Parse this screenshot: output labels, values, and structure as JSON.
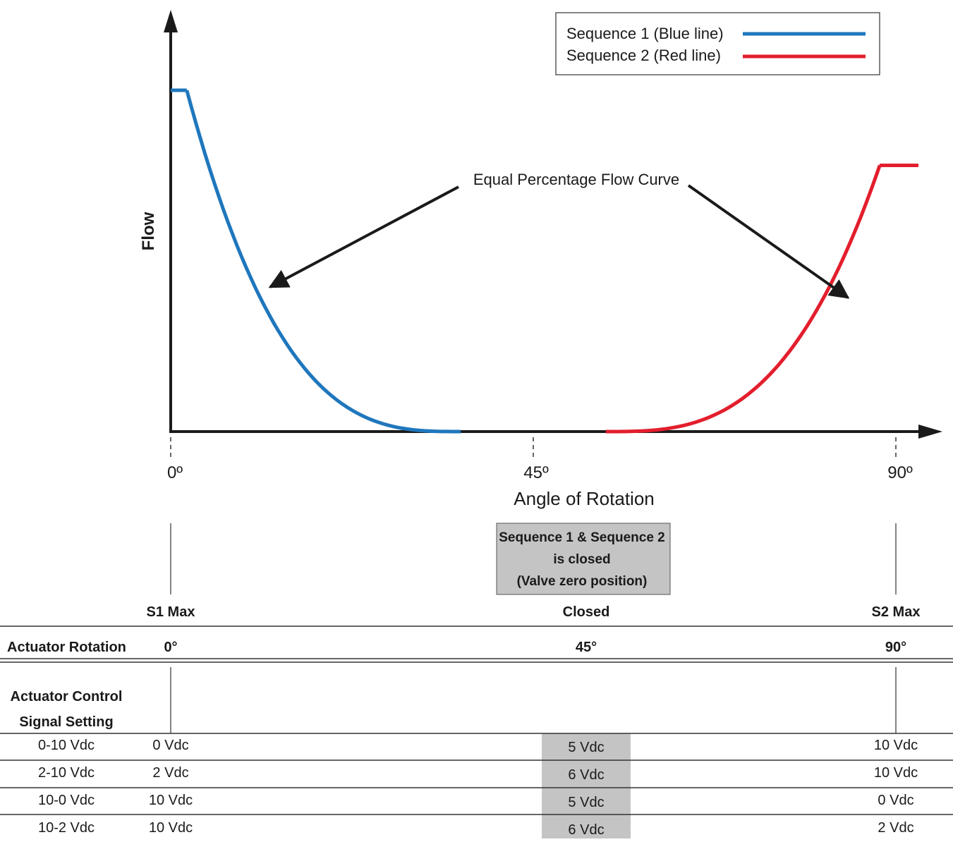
{
  "legend": {
    "items": [
      {
        "label": "Sequence 1  (Blue line)",
        "color": "#1f77bd"
      },
      {
        "label": "Sequence 2  (Red line)",
        "color": "#e31e2d"
      }
    ]
  },
  "chart_data": {
    "type": "line",
    "ylabel": "Flow",
    "xlabel": "Angle of Rotation",
    "x_ticks": [
      "0º",
      "45º",
      "90º"
    ],
    "xlim": [
      0,
      90
    ],
    "ylim": [
      0,
      100
    ],
    "annotation": "Equal Percentage Flow Curve",
    "series": [
      {
        "color": "#1f77bd",
        "max_flow": 100,
        "flat_until": 2,
        "reaches_zero_at": 36
      },
      {
        "color": "#e31e2d",
        "max_flow": 78,
        "starts_rising_at": 54,
        "reaches_max_at": 88
      }
    ]
  },
  "closed_box": {
    "line1": "Sequence 1 & Sequence 2",
    "line2": "is closed",
    "line3": "(Valve zero position)"
  },
  "table": {
    "positions": [
      "S1 Max",
      "Closed",
      "S2 Max"
    ],
    "rotation_label": "Actuator Rotation",
    "rotations": [
      "0°",
      "45°",
      "90°"
    ],
    "signal_label_1": "Actuator Control",
    "signal_label_2": "Signal Setting",
    "rows": [
      {
        "setting": "0-10 Vdc",
        "s1": "0 Vdc",
        "closed": "5 Vdc",
        "s2": "10 Vdc"
      },
      {
        "setting": "2-10 Vdc",
        "s1": "2 Vdc",
        "closed": "6 Vdc",
        "s2": "10 Vdc"
      },
      {
        "setting": "10-0 Vdc",
        "s1": "10 Vdc",
        "closed": "5 Vdc",
        "s2": "0 Vdc"
      },
      {
        "setting": "10-2 Vdc",
        "s1": "10 Vdc",
        "closed": "6 Vdc",
        "s2": "2 Vdc"
      }
    ],
    "highlight_color": "#c4c4c4"
  }
}
